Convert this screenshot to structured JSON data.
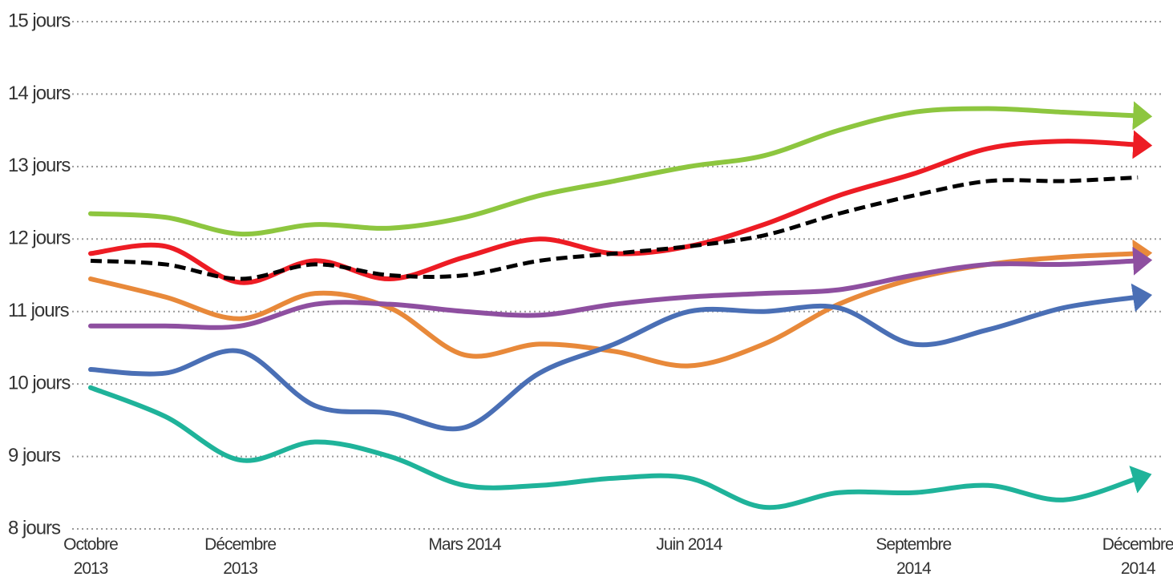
{
  "chart_data": {
    "type": "line",
    "categories": [
      "Octobre 2013",
      null,
      "Décembre 2013",
      null,
      null,
      "Mars 2014",
      null,
      null,
      "Juin 2014",
      null,
      null,
      "Septembre 2014",
      null,
      null,
      "Décembre 2014"
    ],
    "series": [
      {
        "color": "#8dc63f",
        "values": [
          12.35,
          12.3,
          12.07,
          12.2,
          12.15,
          12.3,
          12.6,
          12.8,
          13.0,
          13.15,
          13.5,
          13.75,
          13.8,
          13.75,
          13.7
        ]
      },
      {
        "color": "#ed1c24",
        "values": [
          11.8,
          11.9,
          11.4,
          11.7,
          11.45,
          11.75,
          12.0,
          11.8,
          11.9,
          12.2,
          12.6,
          12.9,
          13.25,
          13.35,
          13.3
        ]
      },
      {
        "color": "#000000",
        "dashed": true,
        "values": [
          11.7,
          11.65,
          11.45,
          11.65,
          11.5,
          11.5,
          11.7,
          11.8,
          11.9,
          12.05,
          12.35,
          12.6,
          12.8,
          12.8,
          12.85
        ]
      },
      {
        "color": "#e8893a",
        "values": [
          11.45,
          11.2,
          10.9,
          11.25,
          11.05,
          10.4,
          10.55,
          10.45,
          10.25,
          10.55,
          11.1,
          11.45,
          11.65,
          11.75,
          11.8
        ]
      },
      {
        "color": "#8e4fa0",
        "values": [
          10.8,
          10.8,
          10.8,
          11.1,
          11.1,
          11.0,
          10.95,
          11.1,
          11.2,
          11.25,
          11.3,
          11.5,
          11.65,
          11.65,
          11.7
        ]
      },
      {
        "color": "#4a6fb5",
        "values": [
          10.2,
          10.15,
          10.45,
          9.7,
          9.6,
          9.4,
          10.15,
          10.55,
          11.0,
          11.0,
          11.05,
          10.55,
          10.75,
          11.05,
          11.2
        ]
      },
      {
        "color": "#1fb39a",
        "values": [
          9.95,
          9.55,
          8.95,
          9.2,
          9.0,
          8.6,
          8.6,
          8.7,
          8.7,
          8.3,
          8.5,
          8.5,
          8.6,
          8.4,
          8.7
        ]
      }
    ],
    "ylim": [
      8,
      15
    ],
    "yticks": [
      {
        "value": 8,
        "label": "8 jours"
      },
      {
        "value": 9,
        "label": "9 jours"
      },
      {
        "value": 10,
        "label": "10 jours"
      },
      {
        "value": 11,
        "label": "11 jours"
      },
      {
        "value": 12,
        "label": "12 jours"
      },
      {
        "value": 13,
        "label": "13 jours"
      },
      {
        "value": 14,
        "label": "14 jours"
      },
      {
        "value": 15,
        "label": "15 jours"
      }
    ],
    "grid": true
  }
}
